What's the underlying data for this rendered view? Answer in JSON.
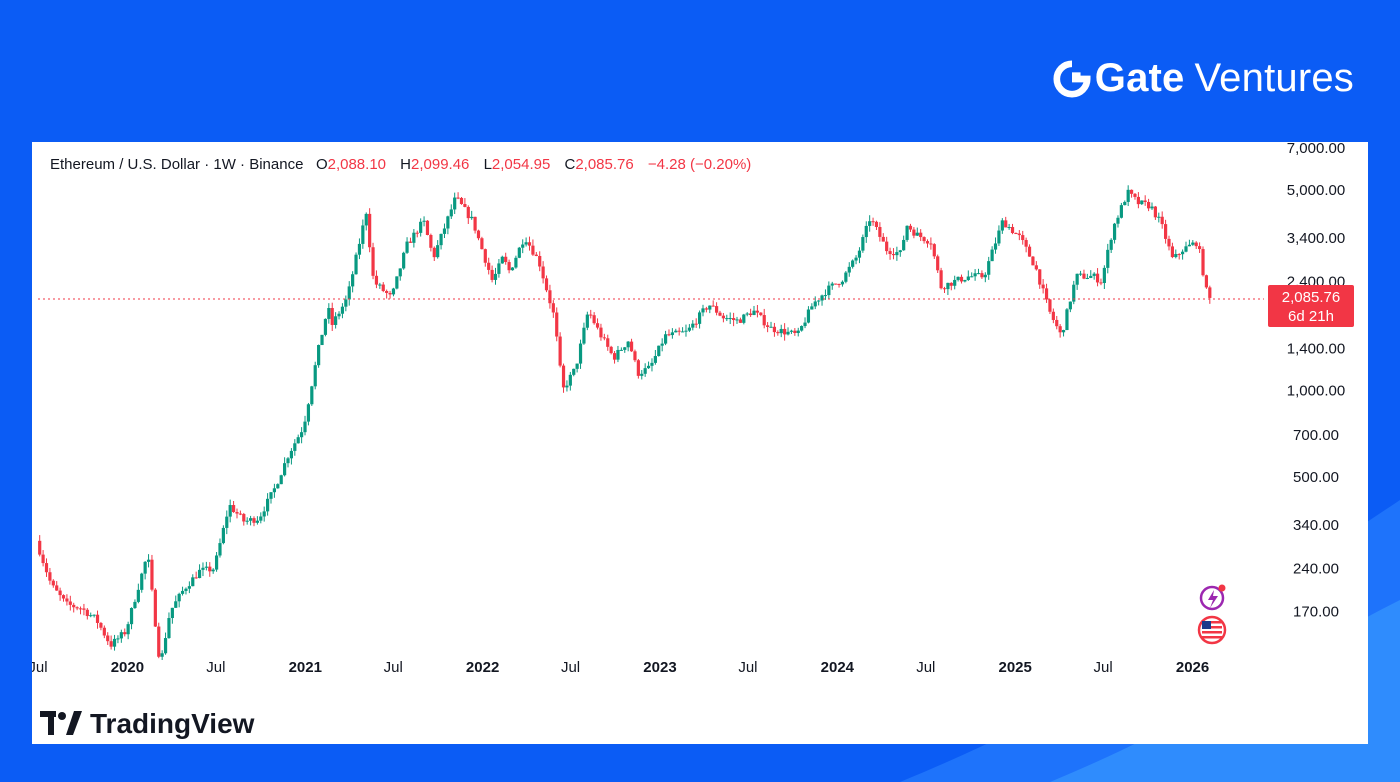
{
  "header": {
    "brand_bold": "Gate",
    "brand_light": "Ventures",
    "logo_icon": "gate-logo-icon"
  },
  "legend": {
    "symbol": "Ethereum / U.S. Dollar · 1W · Binance",
    "open_label": "O",
    "open": "2,088.10",
    "high_label": "H",
    "high": "2,099.46",
    "low_label": "L",
    "low": "2,054.95",
    "close_label": "C",
    "close": "2,085.76",
    "change": "−4.28 (−0.20%)"
  },
  "price_tag": {
    "price": "2,085.76",
    "countdown": "6d 21h"
  },
  "footer": {
    "brand": "TradingView",
    "icon": "tradingview-logo-icon"
  },
  "side_icons": [
    "ai-assistant-icon",
    "us-flag-icon"
  ],
  "colors": {
    "background": "#0b5cf5",
    "up": "#089981",
    "down": "#f23645",
    "axis_text": "#131722"
  },
  "chart_data": {
    "type": "candlestick",
    "scale": "log",
    "timeframe": "1W",
    "x_range": [
      "2019-07-01",
      "2026-02-10"
    ],
    "ylim": [
      125,
      7000
    ],
    "grid": false,
    "current_price": 2085.76,
    "y_ticks": [
      {
        "value": 7000,
        "label": "7,000.00"
      },
      {
        "value": 5000,
        "label": "5,000.00"
      },
      {
        "value": 3400,
        "label": "3,400.00"
      },
      {
        "value": 2400,
        "label": "2,400.00"
      },
      {
        "value": 1400,
        "label": "1,400.00"
      },
      {
        "value": 1000,
        "label": "1,000.00"
      },
      {
        "value": 700,
        "label": "700.00"
      },
      {
        "value": 500,
        "label": "500.00"
      },
      {
        "value": 340,
        "label": "340.00"
      },
      {
        "value": 240,
        "label": "240.00"
      },
      {
        "value": 170,
        "label": "170.00"
      }
    ],
    "x_ticks": [
      {
        "date": "2019-07-01",
        "label": "Jul",
        "bold": false
      },
      {
        "date": "2020-01-01",
        "label": "2020",
        "bold": true
      },
      {
        "date": "2020-07-01",
        "label": "Jul",
        "bold": false
      },
      {
        "date": "2021-01-01",
        "label": "2021",
        "bold": true
      },
      {
        "date": "2021-07-01",
        "label": "Jul",
        "bold": false
      },
      {
        "date": "2022-01-01",
        "label": "2022",
        "bold": true
      },
      {
        "date": "2022-07-01",
        "label": "Jul",
        "bold": false
      },
      {
        "date": "2023-01-01",
        "label": "2023",
        "bold": true
      },
      {
        "date": "2023-07-01",
        "label": "Jul",
        "bold": false
      },
      {
        "date": "2024-01-01",
        "label": "2024",
        "bold": true
      },
      {
        "date": "2024-07-01",
        "label": "Jul",
        "bold": false
      },
      {
        "date": "2025-01-01",
        "label": "2025",
        "bold": true
      },
      {
        "date": "2025-07-01",
        "label": "Jul",
        "bold": false
      },
      {
        "date": "2026-01-01",
        "label": "2026",
        "bold": true
      }
    ],
    "price_path": [
      [
        "2019-07-01",
        300
      ],
      [
        "2019-08-01",
        210
      ],
      [
        "2019-09-01",
        180
      ],
      [
        "2019-10-01",
        175
      ],
      [
        "2019-11-01",
        160
      ],
      [
        "2019-12-01",
        130
      ],
      [
        "2020-01-01",
        145
      ],
      [
        "2020-02-15",
        270
      ],
      [
        "2020-03-12",
        110
      ],
      [
        "2020-04-01",
        170
      ],
      [
        "2020-05-01",
        205
      ],
      [
        "2020-06-01",
        235
      ],
      [
        "2020-07-01",
        240
      ],
      [
        "2020-08-01",
        400
      ],
      [
        "2020-09-01",
        350
      ],
      [
        "2020-10-01",
        360
      ],
      [
        "2020-11-01",
        450
      ],
      [
        "2020-12-01",
        600
      ],
      [
        "2021-01-01",
        750
      ],
      [
        "2021-02-01",
        1400
      ],
      [
        "2021-02-20",
        1950
      ],
      [
        "2021-03-01",
        1700
      ],
      [
        "2021-04-01",
        2100
      ],
      [
        "2021-05-10",
        4200
      ],
      [
        "2021-05-25",
        2400
      ],
      [
        "2021-07-01",
        2100
      ],
      [
        "2021-08-01",
        3200
      ],
      [
        "2021-09-05",
        3900
      ],
      [
        "2021-09-25",
        2900
      ],
      [
        "2021-11-10",
        4700
      ],
      [
        "2021-12-15",
        3900
      ],
      [
        "2022-01-25",
        2400
      ],
      [
        "2022-02-15",
        2900
      ],
      [
        "2022-03-01",
        2600
      ],
      [
        "2022-04-01",
        3450
      ],
      [
        "2022-05-01",
        2800
      ],
      [
        "2022-06-01",
        1800
      ],
      [
        "2022-06-18",
        1000
      ],
      [
        "2022-07-15",
        1200
      ],
      [
        "2022-08-10",
        1900
      ],
      [
        "2022-09-01",
        1600
      ],
      [
        "2022-10-01",
        1300
      ],
      [
        "2022-11-01",
        1500
      ],
      [
        "2022-11-20",
        1150
      ],
      [
        "2022-12-15",
        1200
      ],
      [
        "2023-01-15",
        1550
      ],
      [
        "2023-03-01",
        1600
      ],
      [
        "2023-04-15",
        2000
      ],
      [
        "2023-05-15",
        1800
      ],
      [
        "2023-06-15",
        1750
      ],
      [
        "2023-07-15",
        1900
      ],
      [
        "2023-08-20",
        1650
      ],
      [
        "2023-10-15",
        1560
      ],
      [
        "2023-11-15",
        2000
      ],
      [
        "2023-12-15",
        2250
      ],
      [
        "2024-01-15",
        2450
      ],
      [
        "2024-02-15",
        2950
      ],
      [
        "2024-03-12",
        4000
      ],
      [
        "2024-04-15",
        3100
      ],
      [
        "2024-05-15",
        3000
      ],
      [
        "2024-05-25",
        3800
      ],
      [
        "2024-06-15",
        3500
      ],
      [
        "2024-07-15",
        3300
      ],
      [
        "2024-08-05",
        2300
      ],
      [
        "2024-09-01",
        2400
      ],
      [
        "2024-10-01",
        2500
      ],
      [
        "2024-11-01",
        2500
      ],
      [
        "2024-12-10",
        3900
      ],
      [
        "2025-01-15",
        3400
      ],
      [
        "2025-02-15",
        2700
      ],
      [
        "2025-03-15",
        1900
      ],
      [
        "2025-04-09",
        1550
      ],
      [
        "2025-05-10",
        2500
      ],
      [
        "2025-06-15",
        2500
      ],
      [
        "2025-07-01",
        2400
      ],
      [
        "2025-07-25",
        3700
      ],
      [
        "2025-08-24",
        4900
      ],
      [
        "2025-09-15",
        4500
      ],
      [
        "2025-10-10",
        4400
      ],
      [
        "2025-11-01",
        3800
      ],
      [
        "2025-11-25",
        2850
      ],
      [
        "2025-12-15",
        3100
      ],
      [
        "2026-01-15",
        3300
      ],
      [
        "2026-02-05",
        2085.76
      ]
    ]
  }
}
